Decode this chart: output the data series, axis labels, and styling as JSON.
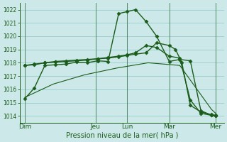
{
  "xlabel": "Pression niveau de la mer( hPa )",
  "background_color": "#cce8e8",
  "grid_color": "#99cccc",
  "line_color": "#1a5c1a",
  "ylim": [
    1013.5,
    1022.5
  ],
  "yticks": [
    1014,
    1015,
    1016,
    1017,
    1018,
    1019,
    1020,
    1021,
    1022
  ],
  "xlim": [
    -0.1,
    9.6
  ],
  "day_labels": [
    "Dim",
    "Jeu",
    "Lun",
    "Mar",
    "Mer"
  ],
  "day_positions": [
    0.15,
    3.5,
    5.0,
    7.0,
    9.2
  ],
  "vline_positions": [
    0.15,
    3.5,
    5.0,
    7.0,
    9.2
  ],
  "series": [
    {
      "x": [
        0.15,
        0.6,
        1.1,
        1.6,
        2.1,
        2.6,
        3.1,
        3.6,
        4.1,
        4.6,
        5.0,
        5.4,
        5.9,
        6.4,
        7.0,
        7.5,
        8.0,
        8.5,
        9.0,
        9.2
      ],
      "y": [
        1015.3,
        1016.1,
        1017.8,
        1017.85,
        1017.9,
        1018.05,
        1018.0,
        1018.15,
        1018.1,
        1021.7,
        1021.85,
        1022.0,
        1021.1,
        1020.0,
        1018.1,
        1018.25,
        1018.15,
        1014.4,
        1014.05,
        1014.0
      ],
      "marker": "D",
      "markersize": 2.5,
      "linewidth": 1.0
    },
    {
      "x": [
        0.15,
        0.6,
        1.1,
        1.6,
        2.1,
        2.6,
        3.1,
        3.6,
        4.1,
        4.6,
        5.0,
        5.4,
        5.9,
        6.4,
        7.0,
        7.5,
        8.0,
        8.5,
        9.0,
        9.2
      ],
      "y": [
        1017.8,
        1017.85,
        1018.0,
        1018.1,
        1018.15,
        1018.2,
        1018.25,
        1018.3,
        1018.4,
        1018.5,
        1018.6,
        1018.75,
        1019.3,
        1019.15,
        1018.5,
        1018.35,
        1015.2,
        1014.2,
        1014.05,
        1014.0
      ],
      "marker": "D",
      "markersize": 2.5,
      "linewidth": 1.0
    },
    {
      "x": [
        0.15,
        0.6,
        1.1,
        1.6,
        2.1,
        2.6,
        3.1,
        3.6,
        4.1,
        4.6,
        5.0,
        5.4,
        5.9,
        6.4,
        7.0,
        7.3,
        7.6,
        8.0,
        8.5,
        9.0,
        9.2
      ],
      "y": [
        1017.8,
        1017.9,
        1018.0,
        1018.05,
        1018.1,
        1018.15,
        1018.2,
        1018.3,
        1018.35,
        1018.45,
        1018.55,
        1018.65,
        1018.75,
        1019.5,
        1019.3,
        1019.0,
        1018.0,
        1014.8,
        1014.3,
        1014.1,
        1014.05
      ],
      "marker": "D",
      "markersize": 2.5,
      "linewidth": 1.0
    },
    {
      "x": [
        0.15,
        1.5,
        3.0,
        4.5,
        6.0,
        7.5,
        9.0,
        9.2
      ],
      "y": [
        1015.4,
        1016.4,
        1017.1,
        1017.6,
        1018.0,
        1017.8,
        1014.5,
        1014.2
      ],
      "marker": null,
      "markersize": 0,
      "linewidth": 0.8,
      "linestyle": "-"
    }
  ]
}
